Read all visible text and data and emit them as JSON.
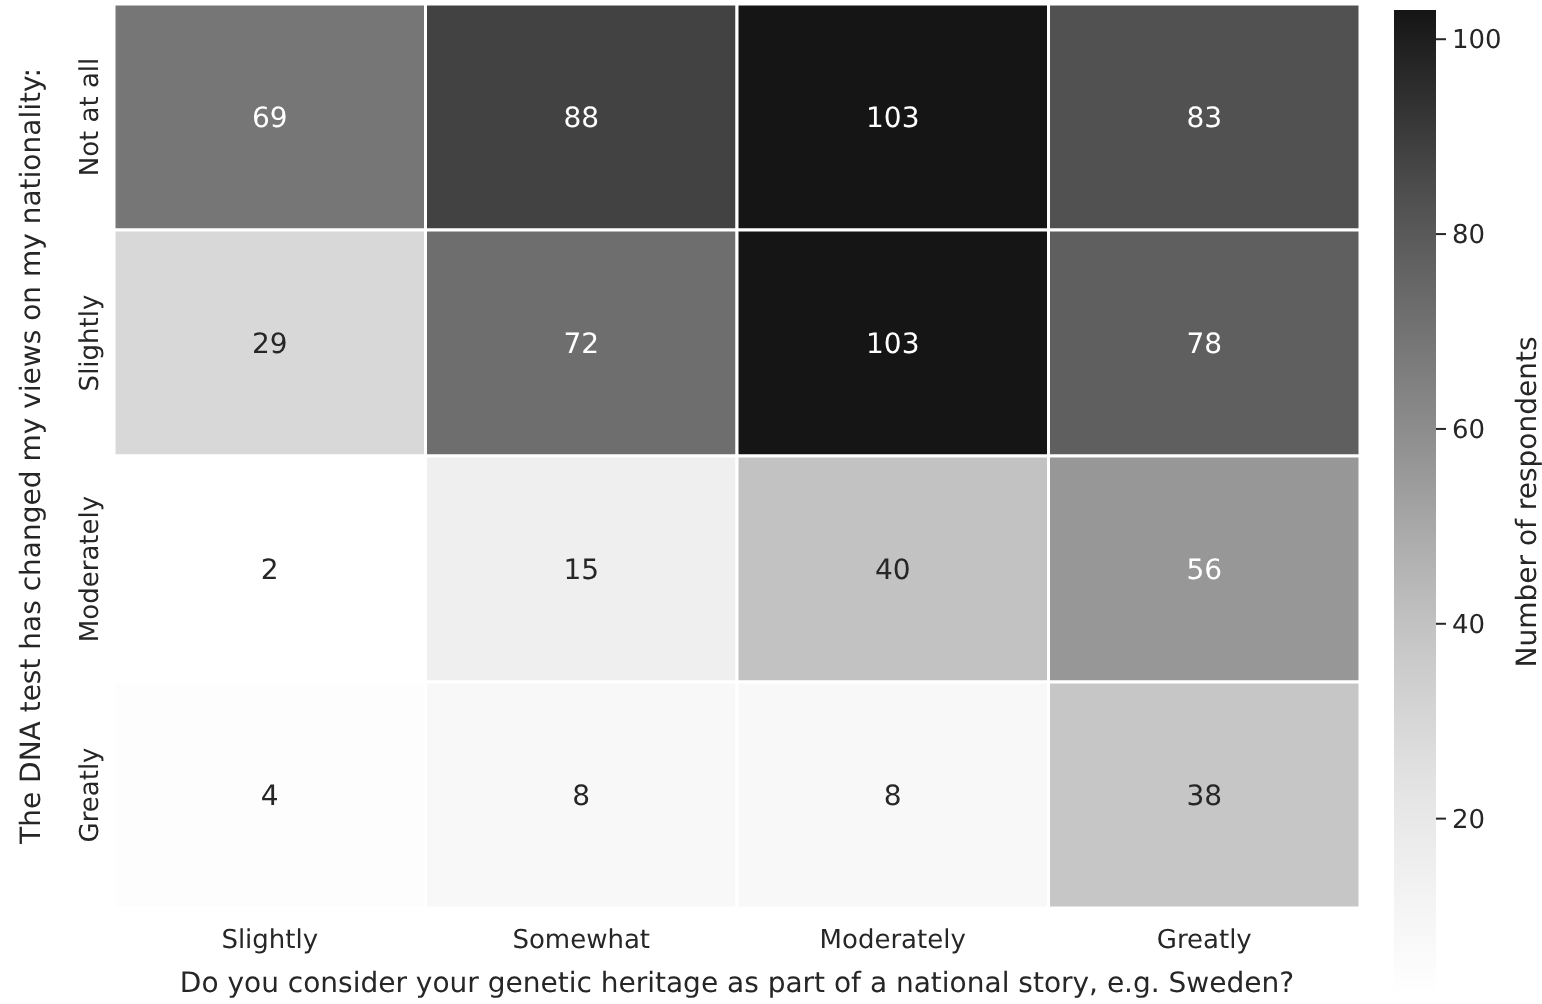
{
  "chart_data": {
    "type": "heatmap",
    "xlabel": "Do you consider your genetic heritage as part of a national story, e.g. Sweden?",
    "ylabel": "The DNA test has changed my views on my nationality:",
    "clabel": "Number of respondents",
    "categories": [
      "Slightly",
      "Somewhat",
      "Moderately",
      "Greatly"
    ],
    "y_categories": [
      "Not at all",
      "Slightly",
      "Moderately",
      "Greatly"
    ],
    "cells": [
      [
        69,
        88,
        103,
        83
      ],
      [
        29,
        72,
        103,
        78
      ],
      [
        2,
        15,
        40,
        56
      ],
      [
        4,
        8,
        8,
        38
      ]
    ],
    "data_labels": true,
    "clim": [
      2,
      103
    ],
    "cticks": [
      20,
      40,
      60,
      80,
      100
    ]
  }
}
